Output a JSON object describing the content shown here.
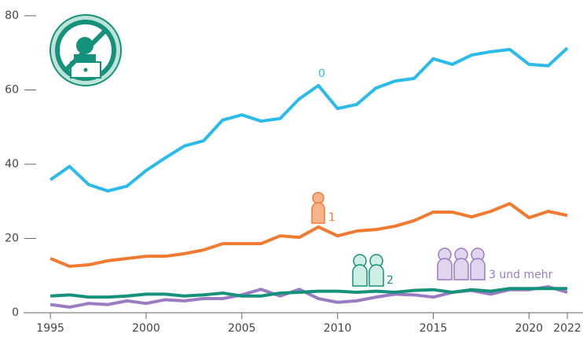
{
  "chart_data": {
    "type": "line",
    "x": [
      1995,
      1996,
      1997,
      1998,
      1999,
      2000,
      2001,
      2002,
      2003,
      2004,
      2005,
      2006,
      2007,
      2008,
      2009,
      2010,
      2011,
      2012,
      2013,
      2014,
      2015,
      2016,
      2017,
      2018,
      2019,
      2020,
      2021,
      2022
    ],
    "series": [
      {
        "name": "0",
        "color": "#2bbbe9",
        "values": [
          35.8,
          39.4,
          34.5,
          32.8,
          34.1,
          38.3,
          41.7,
          44.9,
          46.3,
          51.9,
          53.3,
          51.6,
          52.3,
          57.6,
          61.2,
          55.0,
          56.1,
          60.5,
          62.4,
          63.1,
          68.4,
          66.9,
          69.4,
          70.3,
          70.9,
          66.9,
          66.5,
          71.3
        ]
      },
      {
        "name": "1",
        "color": "#f07a30",
        "values": [
          14.6,
          12.5,
          12.9,
          14.0,
          14.6,
          15.2,
          15.2,
          15.9,
          16.9,
          18.6,
          18.6,
          18.6,
          20.7,
          20.3,
          23.1,
          20.7,
          22.0,
          22.4,
          23.3,
          24.8,
          27.1,
          27.1,
          25.8,
          27.3,
          29.4,
          25.6,
          27.3,
          26.2
        ]
      },
      {
        "name": "2",
        "color": "#14927c",
        "values": [
          4.5,
          4.8,
          4.2,
          4.2,
          4.5,
          5.0,
          5.0,
          4.5,
          4.8,
          5.3,
          4.5,
          4.5,
          5.3,
          5.5,
          5.8,
          5.8,
          5.5,
          5.8,
          5.5,
          6.0,
          6.2,
          5.5,
          6.2,
          5.8,
          6.5,
          6.5,
          6.5,
          6.5
        ]
      },
      {
        "name": "3 und mehr",
        "color": "#9b7cc2",
        "values": [
          2.2,
          1.5,
          2.5,
          2.2,
          3.2,
          2.5,
          3.5,
          3.2,
          3.8,
          3.8,
          4.8,
          6.3,
          4.5,
          6.3,
          3.8,
          2.8,
          3.2,
          4.2,
          5.0,
          4.8,
          4.2,
          5.5,
          6.0,
          5.0,
          6.2,
          6.2,
          7.0,
          5.5
        ]
      }
    ],
    "xlim": [
      1993.6,
      2022.82
    ],
    "xticks": [
      1995,
      2000,
      2005,
      2010,
      2015,
      2020,
      2022
    ],
    "ylim": [
      0,
      80
    ],
    "yticks": [
      0,
      20,
      40,
      60,
      80
    ]
  }
}
